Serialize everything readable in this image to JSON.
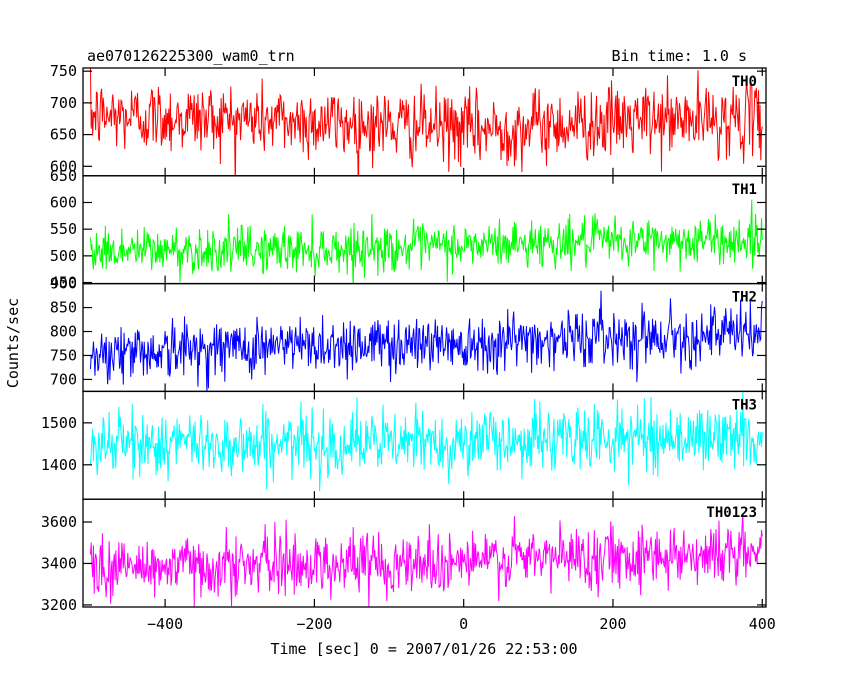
{
  "header": {
    "title": "ae070126225300_wam0_trn",
    "bin_time": "Bin time: 1.0 s"
  },
  "chart_data": {
    "type": "line",
    "xlabel": "Time [sec] 0 = 2007/01/26 22:53:00",
    "ylabel": "Counts/sec",
    "xlim": [
      -510,
      405
    ],
    "x_ticks": [
      -400,
      -200,
      0,
      200,
      400
    ],
    "x_tick_labels": [
      "−400",
      "−200",
      "0",
      "200",
      "400"
    ],
    "x_range_data": [
      -500,
      400
    ],
    "bin_time_s": 1.0,
    "grid": false,
    "panels": [
      {
        "name": "TH0",
        "color": "#ff0000",
        "ylim": [
          585,
          755
        ],
        "y_ticks": [
          600,
          650,
          700,
          750
        ],
        "y_tick_labels": [
          "600",
          "650",
          "700",
          "750"
        ],
        "mean_profile": [
          [
            -500,
            680
          ],
          [
            -300,
            675
          ],
          [
            -100,
            665
          ],
          [
            50,
            657
          ],
          [
            100,
            665
          ],
          [
            250,
            672
          ],
          [
            400,
            675
          ]
        ],
        "noise_sd": 28
      },
      {
        "name": "TH1",
        "color": "#00ff00",
        "ylim": [
          448,
          650
        ],
        "y_ticks": [
          450,
          500,
          550,
          600,
          650
        ],
        "y_tick_labels": [
          "450",
          "500",
          "550",
          "600",
          "650"
        ],
        "mean_profile": [
          [
            -500,
            510
          ],
          [
            -200,
            512
          ],
          [
            0,
            518
          ],
          [
            100,
            525
          ],
          [
            400,
            530
          ]
        ],
        "noise_sd": 22
      },
      {
        "name": "TH2",
        "color": "#0000ff",
        "ylim": [
          675,
          900
        ],
        "y_ticks": [
          700,
          750,
          800,
          850,
          900
        ],
        "y_tick_labels": [
          "700",
          "750",
          "800",
          "850",
          "900"
        ],
        "mean_profile": [
          [
            -500,
            755
          ],
          [
            -250,
            770
          ],
          [
            0,
            778
          ],
          [
            200,
            790
          ],
          [
            400,
            795
          ]
        ],
        "noise_sd": 30
      },
      {
        "name": "TH3",
        "color": "#00ffff",
        "ylim": [
          1318,
          1575
        ],
        "y_ticks": [
          1400,
          1500
        ],
        "y_tick_labels": [
          "1400",
          "1500"
        ],
        "mean_profile": [
          [
            -500,
            1450
          ],
          [
            -200,
            1450
          ],
          [
            0,
            1455
          ],
          [
            200,
            1465
          ],
          [
            400,
            1465
          ]
        ],
        "noise_sd": 38
      },
      {
        "name": "TH0123",
        "color": "#ff00ff",
        "ylim": [
          3190,
          3710
        ],
        "y_ticks": [
          3200,
          3400,
          3600
        ],
        "y_tick_labels": [
          "3200",
          "3400",
          "3600"
        ],
        "mean_profile": [
          [
            -500,
            3380
          ],
          [
            -250,
            3395
          ],
          [
            0,
            3410
          ],
          [
            200,
            3440
          ],
          [
            400,
            3450
          ]
        ],
        "noise_sd": 75
      }
    ]
  }
}
